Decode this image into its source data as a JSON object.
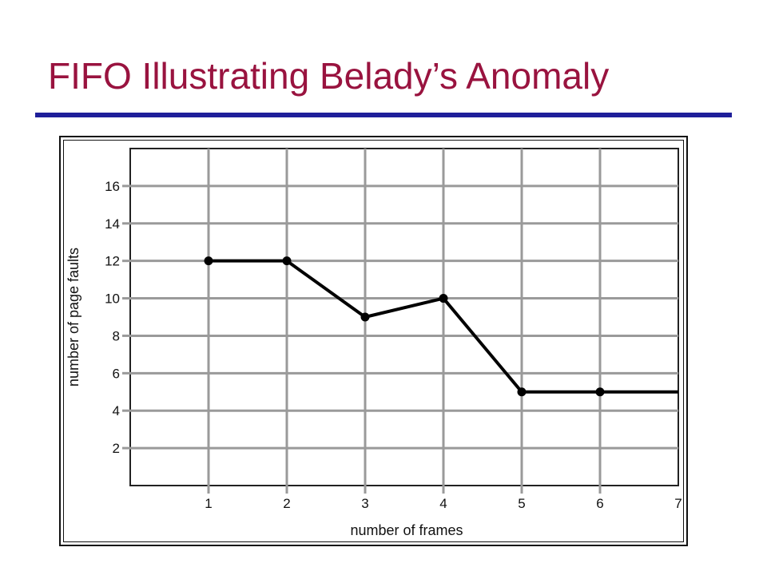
{
  "slide": {
    "title": "FIFO Illustrating Belady’s Anomaly",
    "title_color": "#99133f",
    "rule_color": "#1f1f9a"
  },
  "chart_data": {
    "type": "line",
    "title": "",
    "xlabel": "number of frames",
    "ylabel": "number of page faults",
    "x_ticks": [
      1,
      2,
      3,
      4,
      5,
      6,
      7
    ],
    "y_ticks": [
      2,
      4,
      6,
      8,
      10,
      12,
      14,
      16
    ],
    "xlim": [
      0,
      7
    ],
    "ylim": [
      0,
      18
    ],
    "grid": true,
    "grid_color": "#9a9a9a",
    "line_color": "#000000",
    "series": [
      {
        "x": [
          1,
          2,
          3,
          4,
          5,
          6,
          7
        ],
        "values": [
          12,
          12,
          9,
          10,
          5,
          5,
          5
        ],
        "markers": [
          true,
          true,
          true,
          true,
          true,
          true,
          false
        ]
      }
    ]
  }
}
